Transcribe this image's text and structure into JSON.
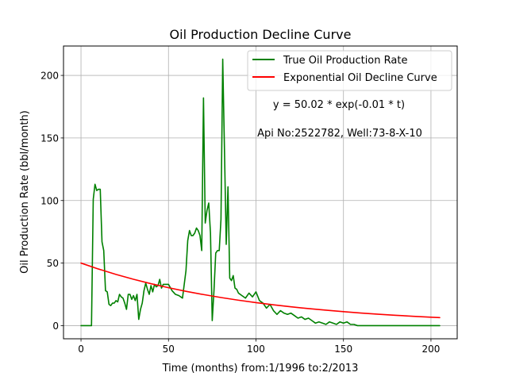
{
  "chart_data": {
    "type": "line",
    "title": "Oil Production Decline Curve",
    "xlabel": "Time (months) from:1/1996 to:2/2013",
    "ylabel": "Oil Production Rate (bbl/month)",
    "xlim": [
      -10,
      215
    ],
    "ylim": [
      -10.5,
      223.5
    ],
    "xticks": [
      0,
      50,
      100,
      150,
      200
    ],
    "yticks": [
      0,
      50,
      100,
      150,
      200
    ],
    "grid": true,
    "legend_position": "top-right",
    "annotations": [
      "y = 50.02 * exp(-0.01 * t)",
      "Api No:2522782, Well:73-8-X-10"
    ],
    "series": [
      {
        "name": "True Oil Production Rate",
        "color": "#008000",
        "x": [
          0,
          1,
          2,
          3,
          4,
          5,
          6,
          7,
          8,
          9,
          10,
          11,
          12,
          13,
          14,
          15,
          16,
          17,
          18,
          19,
          20,
          21,
          22,
          23,
          24,
          25,
          26,
          27,
          28,
          29,
          30,
          31,
          32,
          33,
          34,
          35,
          36,
          37,
          38,
          39,
          40,
          41,
          42,
          43,
          44,
          45,
          46,
          47,
          48,
          49,
          50,
          52,
          54,
          56,
          58,
          60,
          61,
          62,
          63,
          64,
          65,
          66,
          67,
          68,
          69,
          70,
          71,
          72,
          73,
          74,
          75,
          76,
          77,
          78,
          79,
          80,
          81,
          82,
          83,
          84,
          85,
          86,
          87,
          88,
          89,
          90,
          92,
          94,
          96,
          98,
          100,
          102,
          104,
          106,
          108,
          110,
          112,
          114,
          116,
          118,
          120,
          122,
          124,
          126,
          128,
          130,
          132,
          134,
          136,
          138,
          140,
          142,
          144,
          146,
          148,
          150,
          152,
          154,
          156,
          158,
          160,
          170,
          180,
          190,
          200,
          205
        ],
        "y": [
          0,
          0,
          0,
          0,
          0,
          0,
          0,
          101,
          113,
          108,
          109,
          109,
          67,
          60,
          28,
          27,
          17,
          16,
          18,
          18,
          20,
          19,
          25,
          23,
          22,
          18,
          13,
          25,
          25,
          21,
          24,
          20,
          25,
          5,
          13,
          18,
          28,
          34,
          29,
          25,
          32,
          27,
          33,
          31,
          32,
          37,
          30,
          33,
          33,
          33,
          33,
          28,
          25,
          24,
          22,
          44,
          68,
          76,
          72,
          72,
          74,
          78,
          76,
          72,
          60,
          182,
          82,
          92,
          98,
          74,
          4,
          28,
          58,
          60,
          60,
          85,
          213,
          140,
          65,
          111,
          38,
          36,
          40,
          30,
          29,
          26,
          24,
          22,
          26,
          23,
          27,
          20,
          18,
          14,
          17,
          12,
          9,
          12,
          10,
          9,
          10,
          8,
          6,
          7,
          5,
          6,
          4,
          2,
          3,
          2,
          1,
          3,
          2,
          1,
          3,
          2,
          3,
          1,
          1,
          0,
          0,
          0,
          0,
          0,
          0,
          0
        ]
      },
      {
        "name": "Exponential Oil Decline Curve",
        "color": "#ff0000",
        "x": [
          0,
          10,
          20,
          30,
          40,
          50,
          60,
          70,
          80,
          90,
          100,
          110,
          120,
          130,
          140,
          150,
          160,
          170,
          180,
          190,
          200,
          205
        ],
        "y": [
          50.02,
          45.26,
          40.95,
          37.06,
          33.53,
          30.34,
          27.45,
          24.84,
          22.48,
          20.34,
          18.4,
          16.65,
          15.07,
          13.63,
          12.34,
          11.16,
          10.1,
          9.14,
          8.27,
          7.48,
          6.77,
          6.44
        ]
      }
    ]
  }
}
